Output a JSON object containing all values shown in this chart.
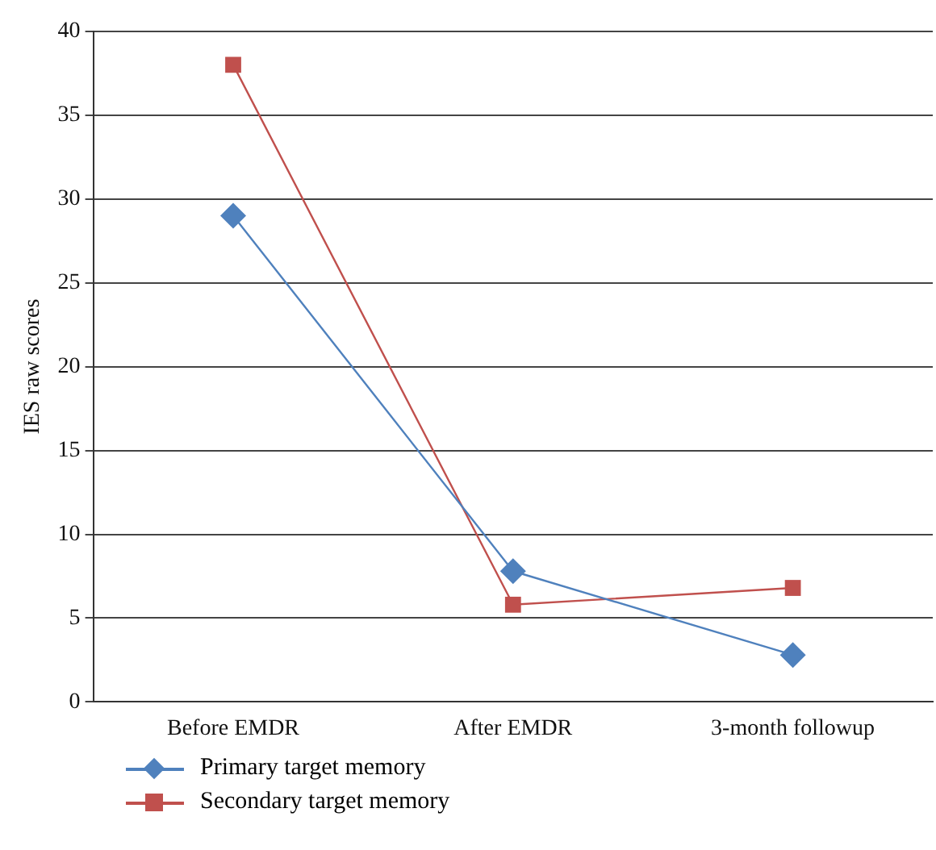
{
  "chart_data": {
    "type": "line",
    "ylabel": "IES raw scores",
    "categories": [
      "Before EMDR",
      "After EMDR",
      "3-month followup"
    ],
    "series": [
      {
        "name": "Primary target memory",
        "color": "#4f81bd",
        "marker": "diamond",
        "values": [
          29,
          7.8,
          2.8
        ]
      },
      {
        "name": "Secondary target memory",
        "color": "#c0504d",
        "marker": "square",
        "values": [
          38,
          5.8,
          6.8
        ]
      }
    ],
    "ylim": [
      0,
      40
    ],
    "yticks": [
      0,
      5,
      10,
      15,
      20,
      25,
      30,
      35,
      40
    ],
    "grid": "y",
    "legend": "bottom left"
  }
}
